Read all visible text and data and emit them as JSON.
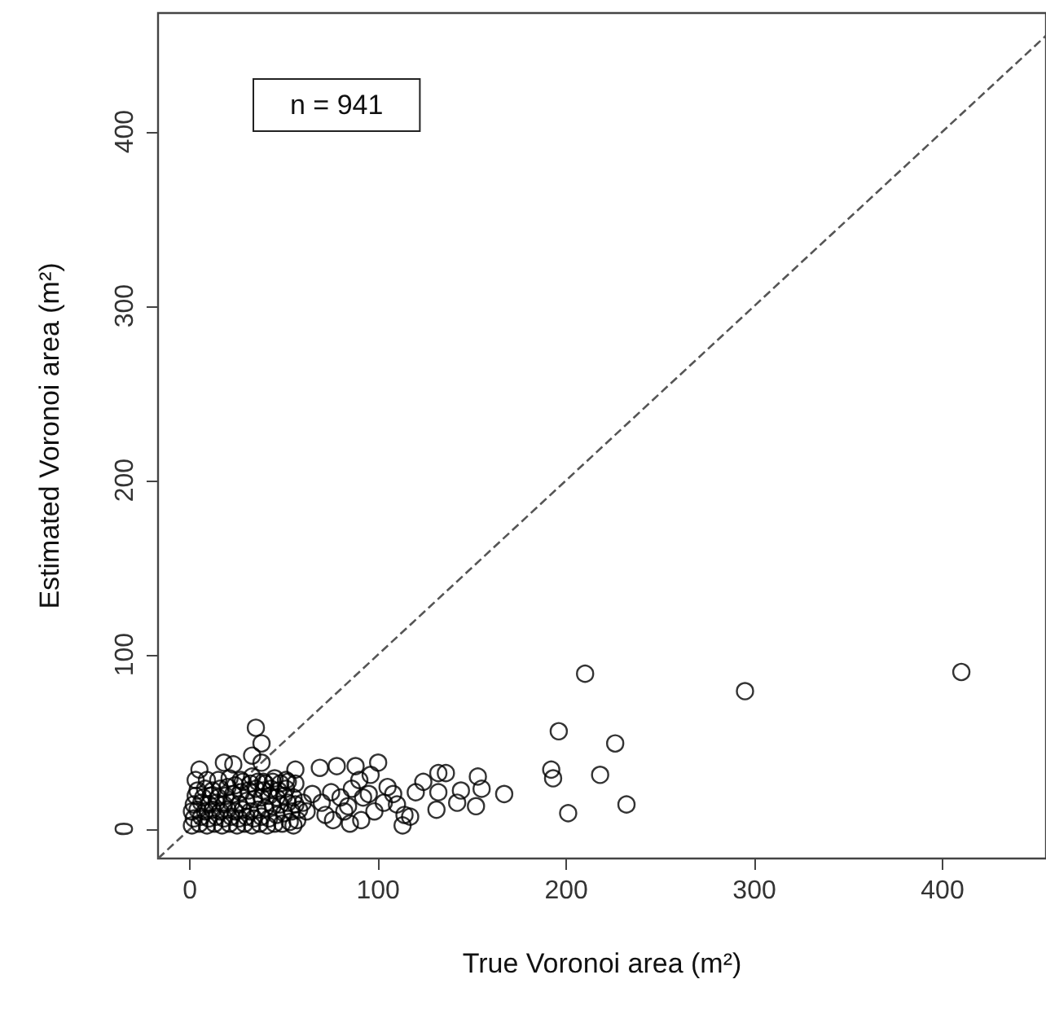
{
  "chart_data": {
    "type": "scatter",
    "xlabel": "True Voronoi area (m²)",
    "ylabel": "Estimated Voronoi area (m²)",
    "annotations": [
      "n = 941"
    ],
    "xlim": [
      -17,
      455
    ],
    "ylim": [
      -17,
      468
    ],
    "xticks": [
      0,
      100,
      200,
      300,
      400
    ],
    "yticks": [
      0,
      100,
      200,
      300,
      400
    ],
    "grid": false,
    "marker": "circle",
    "series": [
      {
        "color": "#000000",
        "x": [
          410,
          295,
          210,
          196,
          226,
          192,
          193,
          218,
          232,
          201,
          167,
          152,
          153,
          155,
          144,
          142,
          136,
          132,
          131,
          132,
          124,
          120,
          113,
          114,
          117,
          110,
          105,
          100,
          96,
          95,
          88,
          91,
          85,
          84,
          86,
          78,
          69,
          75,
          76,
          56,
          55,
          35,
          38,
          33,
          5,
          18,
          23,
          38,
          62,
          65,
          70,
          72,
          80,
          82,
          90,
          92,
          103,
          108,
          98,
          1,
          5,
          9,
          13,
          17,
          21,
          25,
          29,
          33,
          37,
          41,
          45,
          49,
          53,
          57,
          2,
          6,
          10,
          14,
          18,
          22,
          26,
          30,
          34,
          38,
          42,
          46,
          50,
          54,
          58,
          1,
          4,
          8,
          12,
          16,
          20,
          24,
          28,
          32,
          36,
          40,
          44,
          48,
          52,
          56,
          60,
          2,
          6,
          10,
          14,
          18,
          22,
          26,
          30,
          34,
          38,
          42,
          46,
          50,
          55,
          3,
          7,
          11,
          15,
          19,
          23,
          27,
          31,
          35,
          39,
          43,
          47,
          51,
          4,
          8,
          12,
          16,
          20,
          24,
          28,
          32,
          36,
          40,
          44,
          48,
          52,
          56,
          3,
          9,
          15,
          21,
          27,
          33,
          39,
          45,
          51
        ],
        "values": [
          90,
          79,
          89,
          56,
          49,
          34,
          29,
          31,
          14,
          9,
          20,
          13,
          30,
          23,
          22,
          15,
          32,
          32,
          11,
          21,
          27,
          21,
          2,
          8,
          7,
          14,
          24,
          38,
          31,
          20,
          36,
          5,
          3,
          13,
          23,
          36,
          35,
          21,
          5,
          34,
          2,
          58,
          49,
          42,
          34,
          38,
          37,
          38,
          10,
          20,
          15,
          8,
          18,
          10,
          28,
          18,
          15,
          20,
          10,
          2,
          3,
          2,
          3,
          2,
          3,
          2,
          3,
          2,
          3,
          2,
          3,
          3,
          4,
          5,
          6,
          7,
          6,
          7,
          6,
          7,
          6,
          7,
          6,
          7,
          6,
          8,
          9,
          10,
          11,
          10,
          11,
          10,
          11,
          10,
          11,
          10,
          11,
          10,
          11,
          12,
          13,
          14,
          15,
          14,
          15,
          14,
          15,
          14,
          15,
          14,
          15,
          14,
          16,
          17,
          18,
          19,
          18,
          19,
          18,
          19,
          18,
          19,
          18,
          19,
          20,
          21,
          22,
          23,
          22,
          23,
          22,
          23,
          22,
          23,
          22,
          23,
          24,
          25,
          27,
          26,
          27,
          26,
          27,
          26,
          27,
          26,
          28,
          28,
          28,
          29,
          28,
          30,
          27,
          29,
          28
        ]
      },
      {
        "type": "line",
        "color": "#555555",
        "marker": "none",
        "line_style": "dashed",
        "x": [
          -17,
          455
        ],
        "values": [
          -17,
          455
        ]
      }
    ]
  }
}
